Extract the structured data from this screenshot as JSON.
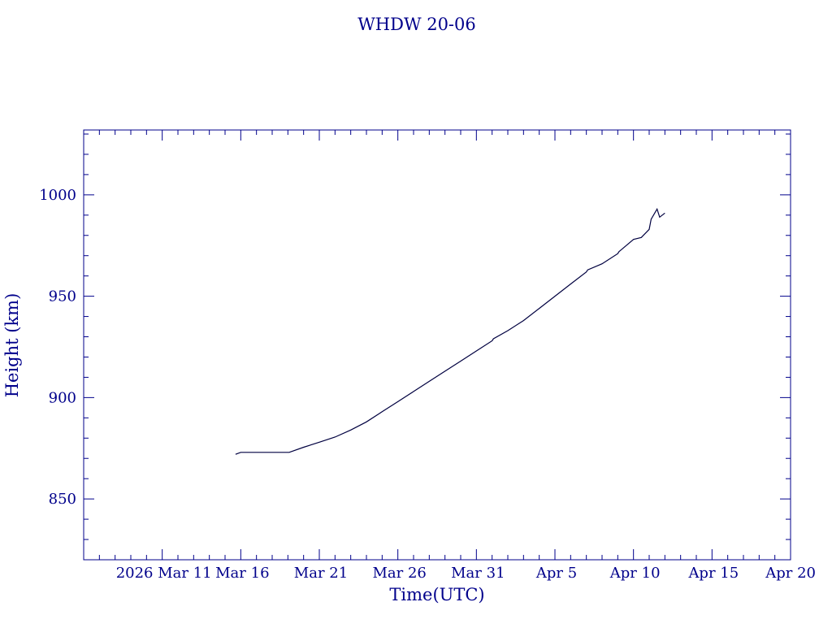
{
  "chart_data": {
    "type": "line",
    "title": "WHDW 20-06",
    "xlabel": "Time(UTC)",
    "ylabel": "Height (km)",
    "colors": {
      "text": "#00008B",
      "axis": "#00008B",
      "line": "#000040",
      "background": "#ffffff"
    },
    "grid": false,
    "legend": "none",
    "xlim": [
      "2026-03-06",
      "2026-04-20"
    ],
    "ylim": [
      820,
      1032
    ],
    "x_ticks": [
      {
        "date": "2026-03-11",
        "label": "2026 Mar 11"
      },
      {
        "date": "2026-03-16",
        "label": "Mar 16"
      },
      {
        "date": "2026-03-21",
        "label": "Mar 21"
      },
      {
        "date": "2026-03-26",
        "label": "Mar 26"
      },
      {
        "date": "2026-03-31",
        "label": "Mar 31"
      },
      {
        "date": "2026-04-05",
        "label": "Apr  5"
      },
      {
        "date": "2026-04-10",
        "label": "Apr 10"
      },
      {
        "date": "2026-04-15",
        "label": "Apr 15"
      },
      {
        "date": "2026-04-20",
        "label": "Apr 20"
      }
    ],
    "y_ticks": [
      {
        "value": 850,
        "label": "850"
      },
      {
        "value": 900,
        "label": "900"
      },
      {
        "value": 950,
        "label": "950"
      },
      {
        "value": 1000,
        "label": "1000"
      }
    ],
    "series": [
      {
        "x": [
          "2026-03-15T16:00",
          "2026-03-16T00:00",
          "2026-03-17T00:00",
          "2026-03-18T00:00",
          "2026-03-19T00:00",
          "2026-03-19T02:00",
          "2026-03-20T00:00",
          "2026-03-21T00:00",
          "2026-03-22T00:00",
          "2026-03-23T00:00",
          "2026-03-24T00:00",
          "2026-03-25T00:00",
          "2026-03-26T00:00",
          "2026-03-27T00:00",
          "2026-03-28T00:00",
          "2026-03-29T00:00",
          "2026-03-30T00:00",
          "2026-03-31T00:00",
          "2026-04-01T00:00",
          "2026-04-01T02:00",
          "2026-04-02T00:00",
          "2026-04-03T00:00",
          "2026-04-04T00:00",
          "2026-04-05T00:00",
          "2026-04-06T00:00",
          "2026-04-07T00:00",
          "2026-04-07T02:00",
          "2026-04-08T00:00",
          "2026-04-09T00:00",
          "2026-04-09T02:00",
          "2026-04-10T00:00",
          "2026-04-10T12:00",
          "2026-04-11T00:00",
          "2026-04-11T03:00",
          "2026-04-11T12:00",
          "2026-04-11T16:00",
          "2026-04-12T00:00"
        ],
        "y": [
          872,
          873,
          873,
          873,
          873,
          873,
          875.5,
          878,
          880.5,
          884,
          888,
          893,
          898,
          903,
          908,
          913,
          918,
          923,
          928,
          929,
          933,
          938,
          944,
          950,
          956,
          962,
          963,
          966,
          971,
          972,
          978,
          979,
          983,
          988,
          993,
          989,
          991
        ]
      }
    ]
  }
}
